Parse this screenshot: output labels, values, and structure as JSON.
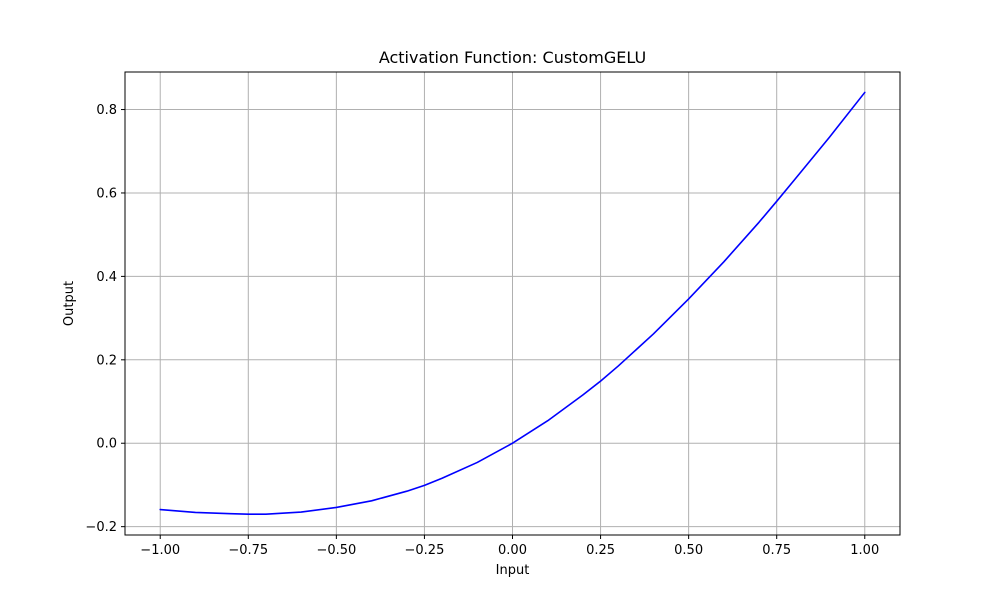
{
  "chart_data": {
    "type": "line",
    "title": "Activation Function: CustomGELU",
    "xlabel": "Input",
    "ylabel": "Output",
    "xlim": [
      -1.1,
      1.1
    ],
    "ylim": [
      -0.22,
      0.89
    ],
    "grid": true,
    "xticks": [
      -1.0,
      -0.75,
      -0.5,
      -0.25,
      0.0,
      0.25,
      0.5,
      0.75,
      1.0
    ],
    "xtick_labels": [
      "−1.00",
      "−0.75",
      "−0.50",
      "−0.25",
      "0.00",
      "0.25",
      "0.50",
      "0.75",
      "1.00"
    ],
    "yticks": [
      -0.2,
      0.0,
      0.2,
      0.4,
      0.6,
      0.8
    ],
    "ytick_labels": [
      "−0.2",
      "0.0",
      "0.2",
      "0.4",
      "0.6",
      "0.8"
    ],
    "series": [
      {
        "name": "CustomGELU",
        "color": "#0000ff",
        "x": [
          -1.0,
          -0.9,
          -0.8,
          -0.75,
          -0.7,
          -0.6,
          -0.5,
          -0.4,
          -0.3,
          -0.25,
          -0.2,
          -0.1,
          0.0,
          0.1,
          0.2,
          0.25,
          0.3,
          0.4,
          0.5,
          0.6,
          0.7,
          0.75,
          0.8,
          0.9,
          1.0
        ],
        "y": [
          -0.159,
          -0.166,
          -0.169,
          -0.17,
          -0.17,
          -0.165,
          -0.154,
          -0.138,
          -0.115,
          -0.101,
          -0.084,
          -0.046,
          0.0,
          0.054,
          0.116,
          0.149,
          0.185,
          0.262,
          0.346,
          0.435,
          0.53,
          0.58,
          0.631,
          0.734,
          0.841
        ]
      }
    ]
  }
}
